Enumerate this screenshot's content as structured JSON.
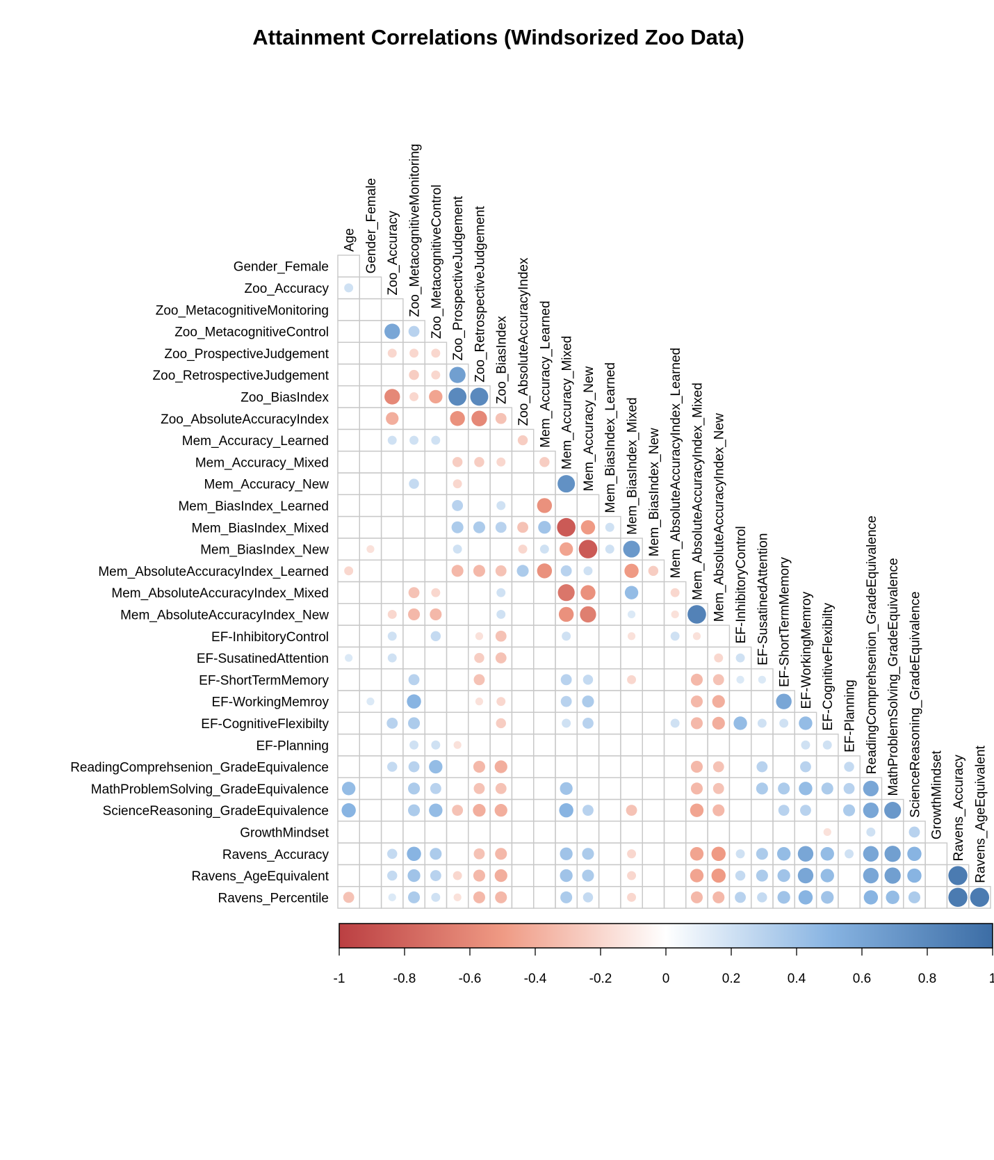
{
  "chart_data": {
    "type": "heatmap",
    "subtype": "correlation-circle-lower-triangle",
    "title": "Attainment Correlations (Windsorized Zoo Data)",
    "row_labels": [
      "Gender_Female",
      "Zoo_Accuracy",
      "Zoo_MetacognitiveMonitoring",
      "Zoo_MetacognitiveControl",
      "Zoo_ProspectiveJudgement",
      "Zoo_RetrospectiveJudgement",
      "Zoo_BiasIndex",
      "Zoo_AbsoluteAccuracyIndex",
      "Mem_Accuracy_Learned",
      "Mem_Accuracy_Mixed",
      "Mem_Accuracy_New",
      "Mem_BiasIndex_Learned",
      "Mem_BiasIndex_Mixed",
      "Mem_BiasIndex_New",
      "Mem_AbsoluteAccuracyIndex_Learned",
      "Mem_AbsoluteAccuracyIndex_Mixed",
      "Mem_AbsoluteAccuracyIndex_New",
      "EF-InhibitoryControl",
      "EF-SusatinedAttention",
      "EF-ShortTermMemory",
      "EF-WorkingMemroy",
      "EF-CognitiveFlexibilty",
      "EF-Planning",
      "ReadingComprehsenion_GradeEquivalence",
      "MathProblemSolving_GradeEquivalence",
      "ScienceReasoning_GradeEquivalence",
      "GrowthMindset",
      "Ravens_Accuracy",
      "Ravens_AgeEquivalent",
      "Ravens_Percentile"
    ],
    "col_labels": [
      "Age",
      "Gender_Female",
      "Zoo_Accuracy",
      "Zoo_MetacognitiveMonitoring",
      "Zoo_MetacognitiveControl",
      "Zoo_ProspectiveJudgement",
      "Zoo_RetrospectiveJudgement",
      "Zoo_BiasIndex",
      "Zoo_AbsoluteAccuracyIndex",
      "Mem_Accuracy_Learned",
      "Mem_Accuracy_Mixed",
      "Mem_Accuracy_New",
      "Mem_BiasIndex_Learned",
      "Mem_BiasIndex_Mixed",
      "Mem_BiasIndex_New",
      "Mem_AbsoluteAccuracyIndex_Learned",
      "Mem_AbsoluteAccuracyIndex_Mixed",
      "Mem_AbsoluteAccuracyIndex_New",
      "EF-InhibitoryControl",
      "EF-SusatinedAttention",
      "EF-ShortTermMemory",
      "EF-WorkingMemroy",
      "EF-CognitiveFlexibilty",
      "EF-Planning",
      "ReadingComprehsenion_GradeEquivalence",
      "MathProblemSolving_GradeEquivalence",
      "ScienceReasoning_GradeEquivalence",
      "GrowthMindset",
      "Ravens_Accuracy",
      "Ravens_AgeEquivalent"
    ],
    "cells_row_col_r": [
      [
        1,
        0,
        0.2
      ],
      [
        3,
        2,
        0.6
      ],
      [
        3,
        3,
        0.3
      ],
      [
        4,
        2,
        -0.2
      ],
      [
        4,
        3,
        -0.2
      ],
      [
        4,
        4,
        -0.2
      ],
      [
        5,
        3,
        -0.25
      ],
      [
        5,
        4,
        -0.2
      ],
      [
        5,
        5,
        0.65
      ],
      [
        6,
        2,
        -0.6
      ],
      [
        6,
        3,
        -0.2
      ],
      [
        6,
        4,
        -0.45
      ],
      [
        6,
        5,
        0.8
      ],
      [
        6,
        6,
        0.8
      ],
      [
        7,
        2,
        -0.4
      ],
      [
        7,
        5,
        -0.55
      ],
      [
        7,
        6,
        -0.6
      ],
      [
        7,
        7,
        -0.3
      ],
      [
        8,
        2,
        0.2
      ],
      [
        8,
        3,
        0.2
      ],
      [
        8,
        4,
        0.2
      ],
      [
        8,
        8,
        -0.25
      ],
      [
        9,
        5,
        -0.25
      ],
      [
        9,
        6,
        -0.25
      ],
      [
        9,
        7,
        -0.2
      ],
      [
        9,
        9,
        -0.25
      ],
      [
        10,
        3,
        0.25
      ],
      [
        10,
        5,
        -0.2
      ],
      [
        10,
        10,
        0.75
      ],
      [
        11,
        5,
        0.3
      ],
      [
        11,
        7,
        0.2
      ],
      [
        11,
        9,
        -0.55
      ],
      [
        12,
        5,
        0.35
      ],
      [
        12,
        6,
        0.35
      ],
      [
        12,
        7,
        0.3
      ],
      [
        12,
        8,
        -0.3
      ],
      [
        12,
        9,
        0.4
      ],
      [
        12,
        10,
        -0.85
      ],
      [
        12,
        11,
        -0.5
      ],
      [
        12,
        12,
        0.2
      ],
      [
        13,
        1,
        -0.15
      ],
      [
        13,
        5,
        0.2
      ],
      [
        13,
        8,
        -0.2
      ],
      [
        13,
        9,
        0.2
      ],
      [
        13,
        10,
        -0.45
      ],
      [
        13,
        11,
        -0.85
      ],
      [
        13,
        12,
        0.2
      ],
      [
        13,
        13,
        0.7
      ],
      [
        14,
        0,
        -0.2
      ],
      [
        14,
        5,
        -0.35
      ],
      [
        14,
        6,
        -0.35
      ],
      [
        14,
        7,
        -0.3
      ],
      [
        14,
        8,
        0.35
      ],
      [
        14,
        9,
        -0.55
      ],
      [
        14,
        10,
        0.3
      ],
      [
        14,
        11,
        0.2
      ],
      [
        14,
        13,
        -0.5
      ],
      [
        14,
        14,
        -0.25
      ],
      [
        15,
        3,
        -0.3
      ],
      [
        15,
        4,
        -0.2
      ],
      [
        15,
        7,
        0.2
      ],
      [
        15,
        10,
        -0.7
      ],
      [
        15,
        11,
        -0.55
      ],
      [
        15,
        13,
        0.45
      ],
      [
        15,
        15,
        -0.2
      ],
      [
        16,
        2,
        -0.2
      ],
      [
        16,
        3,
        -0.35
      ],
      [
        16,
        4,
        -0.35
      ],
      [
        16,
        7,
        0.2
      ],
      [
        16,
        10,
        -0.55
      ],
      [
        16,
        11,
        -0.65
      ],
      [
        16,
        13,
        0.15
      ],
      [
        16,
        15,
        -0.15
      ],
      [
        16,
        16,
        0.85
      ],
      [
        17,
        2,
        0.2
      ],
      [
        17,
        4,
        0.25
      ],
      [
        17,
        6,
        -0.15
      ],
      [
        17,
        7,
        -0.3
      ],
      [
        17,
        10,
        0.2
      ],
      [
        17,
        13,
        -0.15
      ],
      [
        17,
        15,
        0.2
      ],
      [
        17,
        16,
        -0.15
      ],
      [
        18,
        0,
        0.15
      ],
      [
        18,
        2,
        0.2
      ],
      [
        18,
        6,
        -0.25
      ],
      [
        18,
        7,
        -0.3
      ],
      [
        18,
        17,
        -0.2
      ],
      [
        18,
        18,
        0.2
      ],
      [
        19,
        3,
        0.3
      ],
      [
        19,
        6,
        -0.3
      ],
      [
        19,
        10,
        0.3
      ],
      [
        19,
        11,
        0.25
      ],
      [
        19,
        13,
        -0.2
      ],
      [
        19,
        16,
        -0.35
      ],
      [
        19,
        17,
        -0.3
      ],
      [
        19,
        18,
        0.15
      ],
      [
        19,
        19,
        0.15
      ],
      [
        20,
        1,
        0.15
      ],
      [
        20,
        3,
        0.5
      ],
      [
        20,
        6,
        -0.15
      ],
      [
        20,
        7,
        -0.2
      ],
      [
        20,
        10,
        0.3
      ],
      [
        20,
        11,
        0.35
      ],
      [
        20,
        16,
        -0.35
      ],
      [
        20,
        17,
        -0.4
      ],
      [
        20,
        20,
        0.6
      ],
      [
        21,
        2,
        0.3
      ],
      [
        21,
        3,
        0.35
      ],
      [
        21,
        7,
        -0.25
      ],
      [
        21,
        10,
        0.2
      ],
      [
        21,
        11,
        0.3
      ],
      [
        21,
        15,
        0.2
      ],
      [
        21,
        16,
        -0.35
      ],
      [
        21,
        17,
        -0.4
      ],
      [
        21,
        18,
        0.45
      ],
      [
        21,
        19,
        0.2
      ],
      [
        21,
        20,
        0.2
      ],
      [
        21,
        21,
        0.45
      ],
      [
        22,
        3,
        0.2
      ],
      [
        22,
        4,
        0.2
      ],
      [
        22,
        5,
        -0.15
      ],
      [
        22,
        21,
        0.2
      ],
      [
        22,
        22,
        0.2
      ],
      [
        23,
        2,
        0.25
      ],
      [
        23,
        3,
        0.3
      ],
      [
        23,
        4,
        0.45
      ],
      [
        23,
        6,
        -0.35
      ],
      [
        23,
        7,
        -0.4
      ],
      [
        23,
        16,
        -0.35
      ],
      [
        23,
        17,
        -0.3
      ],
      [
        23,
        19,
        0.3
      ],
      [
        23,
        21,
        0.3
      ],
      [
        23,
        23,
        0.25
      ],
      [
        24,
        0,
        0.45
      ],
      [
        24,
        3,
        0.35
      ],
      [
        24,
        4,
        0.3
      ],
      [
        24,
        6,
        -0.3
      ],
      [
        24,
        7,
        -0.3
      ],
      [
        24,
        10,
        0.4
      ],
      [
        24,
        16,
        -0.35
      ],
      [
        24,
        17,
        -0.3
      ],
      [
        24,
        19,
        0.35
      ],
      [
        24,
        20,
        0.35
      ],
      [
        24,
        21,
        0.45
      ],
      [
        24,
        22,
        0.35
      ],
      [
        24,
        23,
        0.3
      ],
      [
        24,
        24,
        0.6
      ],
      [
        25,
        0,
        0.5
      ],
      [
        25,
        3,
        0.35
      ],
      [
        25,
        4,
        0.45
      ],
      [
        25,
        5,
        -0.3
      ],
      [
        25,
        6,
        -0.4
      ],
      [
        25,
        7,
        -0.4
      ],
      [
        25,
        10,
        0.5
      ],
      [
        25,
        11,
        0.3
      ],
      [
        25,
        13,
        -0.3
      ],
      [
        25,
        16,
        -0.45
      ],
      [
        25,
        17,
        -0.35
      ],
      [
        25,
        20,
        0.3
      ],
      [
        25,
        21,
        0.3
      ],
      [
        25,
        23,
        0.35
      ],
      [
        25,
        24,
        0.6
      ],
      [
        25,
        25,
        0.7
      ],
      [
        26,
        22,
        -0.15
      ],
      [
        26,
        24,
        0.2
      ],
      [
        26,
        26,
        0.3
      ],
      [
        27,
        2,
        0.25
      ],
      [
        27,
        3,
        0.5
      ],
      [
        27,
        4,
        0.35
      ],
      [
        27,
        6,
        -0.3
      ],
      [
        27,
        7,
        -0.35
      ],
      [
        27,
        10,
        0.4
      ],
      [
        27,
        11,
        0.35
      ],
      [
        27,
        13,
        -0.2
      ],
      [
        27,
        16,
        -0.45
      ],
      [
        27,
        17,
        -0.5
      ],
      [
        27,
        18,
        0.2
      ],
      [
        27,
        19,
        0.35
      ],
      [
        27,
        20,
        0.45
      ],
      [
        27,
        21,
        0.6
      ],
      [
        27,
        22,
        0.45
      ],
      [
        27,
        23,
        0.2
      ],
      [
        27,
        24,
        0.6
      ],
      [
        27,
        25,
        0.65
      ],
      [
        27,
        26,
        0.5
      ],
      [
        28,
        2,
        0.25
      ],
      [
        28,
        3,
        0.4
      ],
      [
        28,
        4,
        0.3
      ],
      [
        28,
        5,
        -0.2
      ],
      [
        28,
        6,
        -0.35
      ],
      [
        28,
        7,
        -0.4
      ],
      [
        28,
        10,
        0.4
      ],
      [
        28,
        11,
        0.35
      ],
      [
        28,
        13,
        -0.2
      ],
      [
        28,
        16,
        -0.45
      ],
      [
        28,
        17,
        -0.5
      ],
      [
        28,
        18,
        0.25
      ],
      [
        28,
        19,
        0.35
      ],
      [
        28,
        20,
        0.4
      ],
      [
        28,
        21,
        0.6
      ],
      [
        28,
        22,
        0.45
      ],
      [
        28,
        24,
        0.6
      ],
      [
        28,
        25,
        0.65
      ],
      [
        28,
        26,
        0.5
      ],
      [
        28,
        28,
        0.9
      ],
      [
        29,
        0,
        -0.3
      ],
      [
        29,
        2,
        0.15
      ],
      [
        29,
        3,
        0.35
      ],
      [
        29,
        4,
        0.2
      ],
      [
        29,
        5,
        -0.15
      ],
      [
        29,
        6,
        -0.35
      ],
      [
        29,
        7,
        -0.35
      ],
      [
        29,
        10,
        0.35
      ],
      [
        29,
        11,
        0.25
      ],
      [
        29,
        13,
        -0.2
      ],
      [
        29,
        16,
        -0.35
      ],
      [
        29,
        17,
        -0.35
      ],
      [
        29,
        18,
        0.3
      ],
      [
        29,
        19,
        0.25
      ],
      [
        29,
        20,
        0.4
      ],
      [
        29,
        21,
        0.5
      ],
      [
        29,
        22,
        0.4
      ],
      [
        29,
        24,
        0.5
      ],
      [
        29,
        25,
        0.45
      ],
      [
        29,
        26,
        0.35
      ],
      [
        29,
        28,
        0.9
      ],
      [
        29,
        29,
        0.9
      ]
    ],
    "colorbar": {
      "range": [
        -1,
        1
      ],
      "tick_labels": [
        "-1",
        "-0.8",
        "-0.6",
        "-0.4",
        "-0.2",
        "0",
        "0.2",
        "0.4",
        "0.6",
        "0.8",
        "1"
      ],
      "colors": {
        "neg1": "#BB3F42",
        "neg05": "#EF9A84",
        "zero": "#FFFFFF",
        "pos05": "#88B4E2",
        "pos1": "#3C6DA5"
      }
    },
    "grid_color": "#C8C8C8",
    "legend": "bottom"
  }
}
